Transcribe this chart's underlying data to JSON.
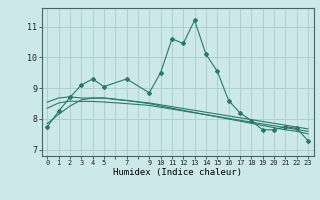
{
  "xlabel": "Humidex (Indice chaleur)",
  "bg_color": "#cce8e8",
  "grid_color": "#aacccc",
  "line_color": "#2a7a6a",
  "xlim": [
    -0.5,
    23.5
  ],
  "ylim": [
    6.8,
    11.6
  ],
  "yticks": [
    7,
    8,
    9,
    10,
    11
  ],
  "xtick_positions": [
    0,
    1,
    2,
    3,
    4,
    5,
    6,
    7,
    8,
    9,
    10,
    11,
    12,
    13,
    14,
    15,
    16,
    17,
    18,
    19,
    20,
    21,
    22,
    23
  ],
  "xtick_labels": [
    "0",
    "1",
    "2",
    "3",
    "4",
    "5",
    "",
    "7",
    "",
    "9",
    "10",
    "11",
    "12",
    "13",
    "14",
    "15",
    "16",
    "17",
    "18",
    "19",
    "20",
    "21",
    "22",
    "23"
  ],
  "line1_x": [
    0,
    1,
    2,
    3,
    4,
    5,
    7,
    9,
    10,
    11,
    12,
    13,
    14,
    15,
    16,
    17,
    18,
    19,
    20,
    21,
    22,
    23
  ],
  "line1_y": [
    7.75,
    8.25,
    8.7,
    9.1,
    9.3,
    9.05,
    9.3,
    8.85,
    9.5,
    10.6,
    10.45,
    11.2,
    10.1,
    9.55,
    8.6,
    8.2,
    7.95,
    7.65,
    7.65,
    7.75,
    7.7,
    7.3
  ],
  "line2_x": [
    0,
    1,
    2,
    3,
    4,
    5,
    7,
    9,
    10,
    11,
    12,
    13,
    14,
    15,
    16,
    17,
    18,
    19,
    20,
    21,
    22,
    23
  ],
  "line2_y": [
    8.55,
    8.68,
    8.72,
    8.68,
    8.68,
    8.68,
    8.6,
    8.52,
    8.46,
    8.4,
    8.34,
    8.28,
    8.22,
    8.16,
    8.1,
    8.04,
    7.98,
    7.92,
    7.86,
    7.8,
    7.74,
    7.68
  ],
  "line3_x": [
    0,
    1,
    2,
    3,
    4,
    5,
    7,
    9,
    10,
    11,
    12,
    13,
    14,
    15,
    16,
    17,
    18,
    19,
    20,
    21,
    22,
    23
  ],
  "line3_y": [
    8.35,
    8.52,
    8.58,
    8.57,
    8.57,
    8.55,
    8.5,
    8.44,
    8.38,
    8.32,
    8.26,
    8.2,
    8.14,
    8.08,
    8.02,
    7.96,
    7.9,
    7.84,
    7.78,
    7.72,
    7.66,
    7.6
  ],
  "line4_x": [
    0,
    1,
    2,
    3,
    4,
    5,
    7,
    9,
    10,
    11,
    12,
    13,
    14,
    15,
    16,
    17,
    18,
    19,
    20,
    21,
    22,
    23
  ],
  "line4_y": [
    7.85,
    8.15,
    8.42,
    8.62,
    8.68,
    8.68,
    8.6,
    8.5,
    8.42,
    8.35,
    8.28,
    8.21,
    8.14,
    8.07,
    8.0,
    7.93,
    7.86,
    7.79,
    7.72,
    7.65,
    7.6,
    7.52
  ]
}
